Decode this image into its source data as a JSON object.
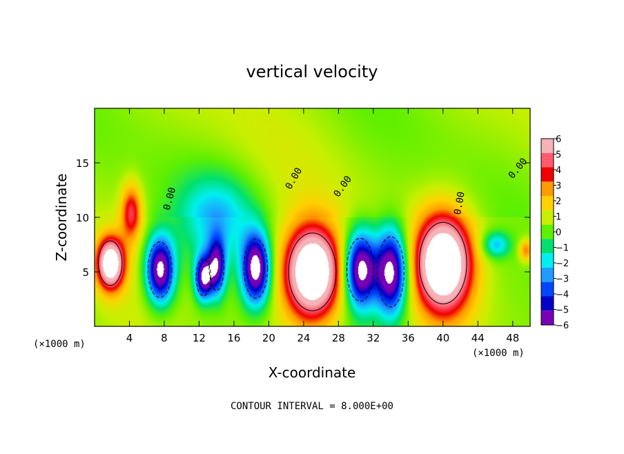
{
  "chart_data": {
    "type": "heatmap",
    "title": "vertical velocity",
    "xlabel": "X-coordinate",
    "ylabel": "Z-coordinate",
    "x_unit_left": "(×1000 m)",
    "x_unit_right": "(×1000 m)",
    "footer": "CONTOUR INTERVAL = 8.000E+00",
    "xlim": [
      0,
      50
    ],
    "ylim": [
      0,
      20
    ],
    "x_ticks": [
      4,
      8,
      12,
      16,
      20,
      24,
      28,
      32,
      36,
      40,
      44,
      48
    ],
    "y_ticks": [
      5,
      10,
      15
    ],
    "colorbar": {
      "labels": [
        "6",
        "5",
        "4",
        "3",
        "2",
        "1",
        "0",
        "−1",
        "−2",
        "−3",
        "−4",
        "−5",
        "−6"
      ],
      "colors": [
        "#f5b3b8",
        "#ff5a6e",
        "#f00000",
        "#ff9a00",
        "#ffd200",
        "#c8f000",
        "#5ef000",
        "#00e070",
        "#00f0f0",
        "#1e9cff",
        "#0046ff",
        "#0000c8",
        "#7a00b4"
      ]
    },
    "contour_labels": [
      "0.00",
      "0.00",
      "0.00",
      "0.00",
      "0.00"
    ],
    "features": [
      {
        "kind": "updraft",
        "x": 1.8,
        "z": 5.8,
        "rx": 1.6,
        "rz": 2.4,
        "peak": 8
      },
      {
        "kind": "updraft",
        "x": 4.2,
        "z": 10.5,
        "rx": 1.2,
        "rz": 2.6,
        "peak": 4
      },
      {
        "kind": "downdraft",
        "x": 7.5,
        "z": 5.2,
        "rx": 1.6,
        "rz": 3.0,
        "peak": -8
      },
      {
        "kind": "downdraft",
        "x": 12.5,
        "z": 4.5,
        "rx": 1.0,
        "rz": 2.0,
        "peak": -7
      },
      {
        "kind": "downdraft",
        "x": 14.0,
        "z": 5.5,
        "rx": 1.0,
        "rz": 2.6,
        "peak": -6
      },
      {
        "kind": "downdraft",
        "x": 14.0,
        "z": 10.0,
        "rx": 4.5,
        "rz": 4.0,
        "peak": -2.8
      },
      {
        "kind": "downdraft",
        "x": 18.5,
        "z": 5.3,
        "rx": 1.6,
        "rz": 3.2,
        "peak": -8
      },
      {
        "kind": "updraft",
        "x": 25.0,
        "z": 5.0,
        "rx": 3.2,
        "rz": 4.2,
        "peak": 9
      },
      {
        "kind": "downdraft",
        "x": 30.5,
        "z": 5.2,
        "rx": 1.8,
        "rz": 3.4,
        "peak": -8
      },
      {
        "kind": "downdraft",
        "x": 34.0,
        "z": 5.0,
        "rx": 1.8,
        "rz": 3.8,
        "peak": -8
      },
      {
        "kind": "updraft",
        "x": 40.0,
        "z": 5.8,
        "rx": 3.2,
        "rz": 4.4,
        "peak": 9
      },
      {
        "kind": "downdraft",
        "x": 46.0,
        "z": 7.5,
        "rx": 1.6,
        "rz": 1.2,
        "peak": -3
      },
      {
        "kind": "updraft",
        "x": 49.5,
        "z": 7.0,
        "rx": 0.8,
        "rz": 1.0,
        "peak": 3
      }
    ]
  }
}
